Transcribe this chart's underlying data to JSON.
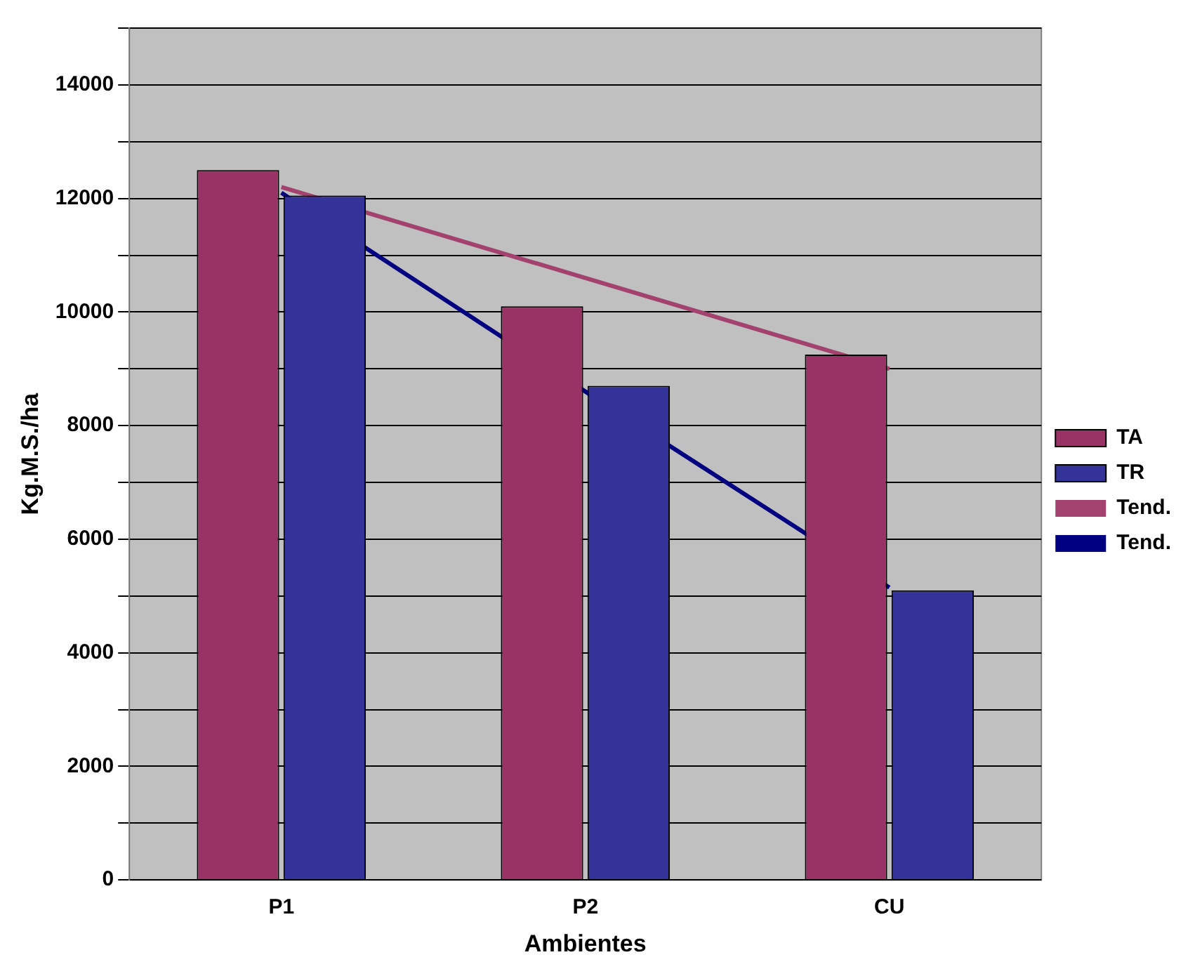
{
  "chart_data": {
    "type": "bar",
    "xlabel": "Ambientes",
    "ylabel": "Kg.M.S./ha",
    "categories": [
      "P1",
      "P2",
      "CU"
    ],
    "series": [
      {
        "name": "TA",
        "color": "#993366",
        "values": [
          12500,
          10100,
          9250
        ]
      },
      {
        "name": "TR",
        "color": "#333399",
        "values": [
          12050,
          8700,
          5100
        ]
      },
      {
        "name": "Tend.",
        "type": "line",
        "color": "#a3426f",
        "values": [
          12200,
          10600,
          9000
        ]
      },
      {
        "name": "Tend.",
        "type": "line",
        "color": "#000080",
        "values": [
          12100,
          8600,
          5150
        ]
      }
    ],
    "ylim": [
      0,
      15000
    ],
    "yticks": [
      0,
      {
        "value": 1000,
        "label": null
      },
      2000,
      {
        "value": 3000,
        "label": null
      },
      4000,
      {
        "value": 5000,
        "label": null
      },
      6000,
      {
        "value": 7000,
        "label": null
      },
      8000,
      {
        "value": 9000,
        "label": null
      },
      10000,
      {
        "value": 11000,
        "label": null
      },
      12000,
      {
        "value": 13000,
        "label": null
      },
      14000,
      {
        "value": 15000,
        "label": null
      }
    ],
    "grid": "y",
    "legend": "right",
    "marker": "none"
  }
}
